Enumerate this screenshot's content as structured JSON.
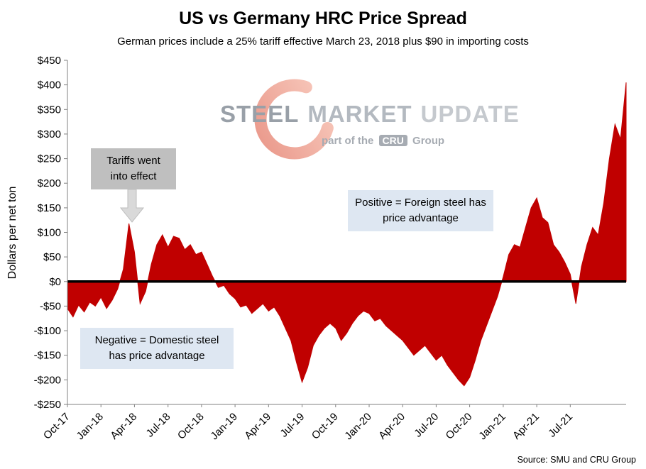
{
  "title": "US vs Germany HRC Price Spread",
  "subtitle": "German prices include a 25% tariff effective March 23, 2018 plus $90 in importing costs",
  "source": "Source: SMU and CRU Group",
  "watermark": {
    "steel": "STEEL",
    "market": "MARKET",
    "update": "UPDATE",
    "part_of": "part of the",
    "cru": "CRU",
    "group": "Group"
  },
  "annotations": {
    "tariffs": "Tariffs went into effect",
    "positive": "Positive = Foreign steel has price advantage",
    "negative": "Negative = Domestic steel has price advantage"
  },
  "colors": {
    "area": "#C00000",
    "zero_line": "#000000",
    "tariff_box": "#BFBFBF",
    "note_box": "#DEE7F2",
    "arrow": "#D9D9D9",
    "watermark_red": "#E2492F"
  },
  "chart_data": {
    "type": "area",
    "title": "US vs Germany HRC Price Spread",
    "subtitle": "German prices include a 25% tariff effective March 23, 2018 plus $90 in importing costs",
    "ylabel": "Dollars per net ton",
    "ylim": [
      -250,
      450
    ],
    "ytick_step": 50,
    "y_tick_labels": [
      "$450",
      "$400",
      "$350",
      "$300",
      "$250",
      "$200",
      "$150",
      "$100",
      "$50",
      "$0",
      "-$50",
      "-$100",
      "-$150",
      "-$200",
      "-$250"
    ],
    "baseline": 0,
    "grid": false,
    "legend": "none",
    "fill_color": "#C00000",
    "x_unit": "biweekly samples, Oct-2017 through Nov-2021",
    "x_tick_every_n_samples": 6,
    "x_tick_labels": [
      "Oct-17",
      "Jan-18",
      "Apr-18",
      "Jul-18",
      "Oct-18",
      "Jan-19",
      "Apr-19",
      "Jul-19",
      "Oct-19",
      "Jan-20",
      "Apr-20",
      "Jul-20",
      "Oct-20",
      "Jan-21",
      "Apr-21",
      "Jul-21"
    ],
    "values": [
      -55,
      -72,
      -48,
      -62,
      -42,
      -50,
      -32,
      -55,
      -38,
      -15,
      25,
      118,
      60,
      -45,
      -20,
      35,
      75,
      95,
      70,
      92,
      88,
      65,
      75,
      55,
      60,
      35,
      10,
      -12,
      -8,
      -25,
      -35,
      -52,
      -48,
      -65,
      -55,
      -45,
      -60,
      -52,
      -70,
      -95,
      -120,
      -165,
      -205,
      -175,
      -130,
      -110,
      -95,
      -85,
      -95,
      -120,
      -105,
      -85,
      -70,
      -60,
      -65,
      -80,
      -75,
      -90,
      -100,
      -110,
      -120,
      -135,
      -150,
      -140,
      -130,
      -145,
      -160,
      -150,
      -170,
      -185,
      -200,
      -212,
      -195,
      -160,
      -120,
      -90,
      -60,
      -30,
      10,
      55,
      75,
      70,
      110,
      150,
      170,
      130,
      120,
      75,
      60,
      40,
      15,
      -45,
      30,
      75,
      110,
      95,
      160,
      250,
      320,
      290,
      405
    ]
  }
}
